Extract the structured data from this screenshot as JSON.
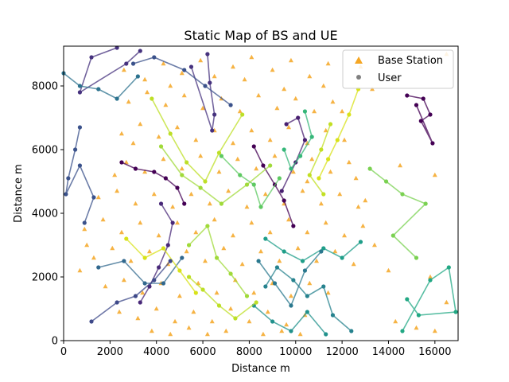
{
  "chart_data": {
    "type": "scatter",
    "title": "Static Map of BS and UE",
    "xlabel": "Distance m",
    "ylabel": "Distance m",
    "xlim": [
      0,
      17000
    ],
    "ylim": [
      0,
      9250
    ],
    "xticks": [
      0,
      2000,
      4000,
      6000,
      8000,
      10000,
      12000,
      14000,
      16000
    ],
    "yticks": [
      0,
      2000,
      4000,
      6000,
      8000
    ],
    "grid": false,
    "legend_position": "top-right",
    "legend": [
      {
        "label": "Base Station",
        "marker": "triangle",
        "color": "#f5a623"
      },
      {
        "label": "User",
        "marker": "circle",
        "color": "#808080"
      }
    ],
    "base_station_color": "#f5a623",
    "colormap": "viridis",
    "base_stations": [
      [
        2600,
        8500
      ],
      [
        3500,
        8200
      ],
      [
        4300,
        8700
      ],
      [
        5100,
        8400
      ],
      [
        5900,
        8800
      ],
      [
        6500,
        8300
      ],
      [
        7300,
        8600
      ],
      [
        8100,
        8900
      ],
      [
        9000,
        8500
      ],
      [
        9800,
        8800
      ],
      [
        10600,
        8300
      ],
      [
        11400,
        8700
      ],
      [
        2800,
        7500
      ],
      [
        3600,
        7800
      ],
      [
        4400,
        7400
      ],
      [
        5200,
        7700
      ],
      [
        6000,
        7300
      ],
      [
        6800,
        7600
      ],
      [
        7600,
        7200
      ],
      [
        8400,
        7700
      ],
      [
        9200,
        7300
      ],
      [
        10000,
        7600
      ],
      [
        10800,
        7200
      ],
      [
        11600,
        7500
      ],
      [
        2500,
        6500
      ],
      [
        3300,
        6800
      ],
      [
        4100,
        6400
      ],
      [
        4900,
        6700
      ],
      [
        5700,
        6300
      ],
      [
        6500,
        6600
      ],
      [
        7300,
        6200
      ],
      [
        8100,
        6600
      ],
      [
        8900,
        6300
      ],
      [
        9700,
        6700
      ],
      [
        10500,
        6200
      ],
      [
        11300,
        6600
      ],
      [
        12100,
        6300
      ],
      [
        2700,
        5600
      ],
      [
        3500,
        5300
      ],
      [
        4300,
        5700
      ],
      [
        5100,
        5400
      ],
      [
        5900,
        5800
      ],
      [
        6700,
        5300
      ],
      [
        7500,
        5700
      ],
      [
        8300,
        5400
      ],
      [
        9100,
        5800
      ],
      [
        9900,
        5300
      ],
      [
        10700,
        5700
      ],
      [
        11500,
        5300
      ],
      [
        12300,
        5600
      ],
      [
        1500,
        4500
      ],
      [
        2300,
        4700
      ],
      [
        3100,
        4300
      ],
      [
        3900,
        4600
      ],
      [
        4700,
        4200
      ],
      [
        5500,
        4600
      ],
      [
        6300,
        4300
      ],
      [
        7100,
        4700
      ],
      [
        7900,
        4200
      ],
      [
        8700,
        4600
      ],
      [
        9500,
        4300
      ],
      [
        10300,
        4700
      ],
      [
        11100,
        4300
      ],
      [
        11900,
        4600
      ],
      [
        12700,
        4200
      ],
      [
        900,
        3500
      ],
      [
        1700,
        3800
      ],
      [
        2500,
        3400
      ],
      [
        3300,
        3700
      ],
      [
        4100,
        3300
      ],
      [
        4900,
        3700
      ],
      [
        5700,
        3400
      ],
      [
        6500,
        3800
      ],
      [
        7300,
        3300
      ],
      [
        8100,
        3700
      ],
      [
        8900,
        3400
      ],
      [
        9700,
        3800
      ],
      [
        10500,
        3400
      ],
      [
        11300,
        3700
      ],
      [
        12100,
        3300
      ],
      [
        12900,
        3600
      ],
      [
        1300,
        2600
      ],
      [
        2100,
        2900
      ],
      [
        2900,
        2500
      ],
      [
        3700,
        2800
      ],
      [
        4500,
        2400
      ],
      [
        5300,
        2800
      ],
      [
        6100,
        2500
      ],
      [
        6900,
        2900
      ],
      [
        7700,
        2400
      ],
      [
        8500,
        2800
      ],
      [
        9300,
        2500
      ],
      [
        10100,
        2900
      ],
      [
        10900,
        2500
      ],
      [
        11700,
        2800
      ],
      [
        12500,
        2400
      ],
      [
        1800,
        1700
      ],
      [
        2600,
        1900
      ],
      [
        3400,
        1500
      ],
      [
        4200,
        1800
      ],
      [
        5000,
        1400
      ],
      [
        5800,
        1800
      ],
      [
        6600,
        1500
      ],
      [
        7400,
        1900
      ],
      [
        8200,
        1500
      ],
      [
        9000,
        1800
      ],
      [
        9800,
        1400
      ],
      [
        10600,
        1800
      ],
      [
        11400,
        1500
      ],
      [
        2400,
        900
      ],
      [
        3200,
        700
      ],
      [
        4000,
        1000
      ],
      [
        4800,
        600
      ],
      [
        5600,
        900
      ],
      [
        6400,
        600
      ],
      [
        7200,
        1000
      ],
      [
        8000,
        600
      ],
      [
        8800,
        900
      ],
      [
        9600,
        500
      ],
      [
        10400,
        800
      ],
      [
        3800,
        300
      ],
      [
        4600,
        200
      ],
      [
        5400,
        400
      ],
      [
        6200,
        200
      ],
      [
        7000,
        300
      ],
      [
        8600,
        200
      ],
      [
        9400,
        300
      ],
      [
        10200,
        200
      ],
      [
        14300,
        600
      ],
      [
        15200,
        400
      ],
      [
        16000,
        300
      ],
      [
        16500,
        1200
      ],
      [
        15800,
        2000
      ],
      [
        14000,
        2200
      ],
      [
        13400,
        3000
      ],
      [
        14500,
        5500
      ],
      [
        13300,
        7900
      ],
      [
        12800,
        8600
      ],
      [
        16500,
        9000
      ],
      [
        16000,
        5200
      ],
      [
        1000,
        3000
      ],
      [
        700,
        2200
      ],
      [
        2200,
        5200
      ],
      [
        3000,
        6200
      ],
      [
        4600,
        8000
      ],
      [
        7800,
        8200
      ],
      [
        9500,
        7900
      ],
      [
        11200,
        8000
      ],
      [
        12000,
        7200
      ],
      [
        12600,
        5100
      ],
      [
        13000,
        4400
      ],
      [
        10500,
        5000
      ]
    ],
    "users": [
      {
        "color": "#46327e",
        "points": [
          [
            2300,
            9200
          ],
          [
            1200,
            8900
          ],
          [
            700,
            7800
          ],
          [
            2700,
            8700
          ],
          [
            3300,
            9100
          ]
        ]
      },
      {
        "color": "#46327e",
        "points": [
          [
            6200,
            9000
          ],
          [
            6300,
            8100
          ],
          [
            6500,
            7100
          ],
          [
            6400,
            6600
          ],
          [
            5500,
            8600
          ]
        ]
      },
      {
        "color": "#3b528b",
        "points": [
          [
            700,
            6700
          ],
          [
            500,
            6000
          ],
          [
            200,
            5100
          ],
          [
            100,
            4600
          ],
          [
            700,
            5500
          ],
          [
            1300,
            4500
          ],
          [
            900,
            3700
          ]
        ]
      },
      {
        "color": "#3b528b",
        "points": [
          [
            3000,
            8700
          ],
          [
            3900,
            8900
          ],
          [
            5200,
            8500
          ],
          [
            6100,
            8000
          ],
          [
            7200,
            7400
          ]
        ]
      },
      {
        "color": "#440154",
        "points": [
          [
            2500,
            5600
          ],
          [
            3100,
            5400
          ],
          [
            3900,
            5300
          ],
          [
            4400,
            5100
          ],
          [
            4900,
            4800
          ],
          [
            5200,
            4300
          ]
        ]
      },
      {
        "color": "#440154",
        "points": [
          [
            8200,
            6100
          ],
          [
            8600,
            5500
          ],
          [
            9100,
            4900
          ],
          [
            9500,
            4400
          ],
          [
            9900,
            3600
          ]
        ]
      },
      {
        "color": "#482878",
        "points": [
          [
            4200,
            4300
          ],
          [
            4700,
            3700
          ],
          [
            4500,
            3000
          ],
          [
            4100,
            2300
          ],
          [
            3700,
            1700
          ],
          [
            3300,
            1200
          ]
        ]
      },
      {
        "color": "#31688e",
        "points": [
          [
            1500,
            2300
          ],
          [
            2600,
            2500
          ],
          [
            3500,
            1800
          ],
          [
            4300,
            1800
          ],
          [
            5100,
            2600
          ]
        ]
      },
      {
        "color": "#440154",
        "points": [
          [
            14800,
            7700
          ],
          [
            15500,
            7600
          ],
          [
            15800,
            7100
          ],
          [
            15400,
            6900
          ],
          [
            15900,
            6200
          ],
          [
            15200,
            7400
          ]
        ]
      },
      {
        "color": "#481f70",
        "points": [
          [
            9600,
            6800
          ],
          [
            10100,
            7000
          ],
          [
            10400,
            6300
          ],
          [
            10000,
            5600
          ],
          [
            9400,
            4700
          ]
        ]
      },
      {
        "color": "#35b779",
        "points": [
          [
            9500,
            6000
          ],
          [
            9800,
            5400
          ],
          [
            10200,
            5800
          ],
          [
            10700,
            6400
          ],
          [
            10400,
            7200
          ]
        ]
      },
      {
        "color": "#1f9e89",
        "points": [
          [
            8700,
            3200
          ],
          [
            9500,
            2800
          ],
          [
            10300,
            2500
          ],
          [
            11200,
            2900
          ],
          [
            12000,
            2600
          ],
          [
            12800,
            3100
          ]
        ]
      },
      {
        "color": "#26828e",
        "points": [
          [
            8700,
            1700
          ],
          [
            9200,
            2300
          ],
          [
            9900,
            1900
          ],
          [
            10500,
            1400
          ],
          [
            11200,
            1700
          ],
          [
            11600,
            800
          ],
          [
            12400,
            300
          ]
        ]
      },
      {
        "color": "#21918c",
        "points": [
          [
            8200,
            1100
          ],
          [
            9000,
            600
          ],
          [
            9800,
            300
          ],
          [
            10500,
            900
          ],
          [
            11300,
            200
          ]
        ]
      },
      {
        "color": "#5ec962",
        "points": [
          [
            6800,
            5800
          ],
          [
            7600,
            5200
          ],
          [
            8200,
            4900
          ],
          [
            8500,
            4200
          ],
          [
            9300,
            5100
          ]
        ]
      },
      {
        "color": "#7ad151",
        "points": [
          [
            13200,
            5400
          ],
          [
            13900,
            5000
          ],
          [
            14600,
            4600
          ],
          [
            15600,
            4300
          ],
          [
            14200,
            3300
          ],
          [
            15200,
            2600
          ]
        ]
      },
      {
        "color": "#22a884",
        "points": [
          [
            14800,
            1300
          ],
          [
            15300,
            800
          ],
          [
            16900,
            900
          ],
          [
            16600,
            2300
          ],
          [
            15800,
            1900
          ],
          [
            14600,
            300
          ]
        ]
      },
      {
        "color": "#a0da39",
        "points": [
          [
            4200,
            6100
          ],
          [
            5100,
            5200
          ],
          [
            5900,
            4800
          ],
          [
            6800,
            4300
          ],
          [
            7900,
            4900
          ],
          [
            8900,
            5500
          ]
        ]
      },
      {
        "color": "#bddf26",
        "points": [
          [
            3800,
            7600
          ],
          [
            4600,
            6500
          ],
          [
            5300,
            5600
          ],
          [
            6100,
            5000
          ],
          [
            6700,
            5900
          ],
          [
            7700,
            7100
          ]
        ]
      },
      {
        "color": "#a0da39",
        "points": [
          [
            5400,
            3000
          ],
          [
            6200,
            3600
          ],
          [
            6600,
            2600
          ],
          [
            7200,
            2100
          ],
          [
            7900,
            1400
          ]
        ]
      },
      {
        "color": "#bddf26",
        "points": [
          [
            5400,
            2000
          ],
          [
            6000,
            1600
          ],
          [
            6700,
            1100
          ],
          [
            7400,
            700
          ],
          [
            8300,
            1200
          ]
        ]
      },
      {
        "color": "#d8e219",
        "points": [
          [
            2700,
            3200
          ],
          [
            3500,
            2600
          ],
          [
            4300,
            2900
          ],
          [
            5000,
            2200
          ],
          [
            5700,
            1500
          ]
        ]
      },
      {
        "color": "#d8e219",
        "points": [
          [
            11000,
            5100
          ],
          [
            11400,
            5700
          ],
          [
            11800,
            6300
          ],
          [
            12300,
            7100
          ],
          [
            12700,
            7900
          ]
        ]
      },
      {
        "color": "#c2df23",
        "points": [
          [
            11200,
            4600
          ],
          [
            10600,
            5200
          ],
          [
            11100,
            6000
          ],
          [
            11500,
            6800
          ]
        ]
      },
      {
        "color": "#2a788e",
        "points": [
          [
            8400,
            2500
          ],
          [
            9100,
            1800
          ],
          [
            9800,
            1100
          ],
          [
            10400,
            2200
          ],
          [
            11100,
            2800
          ]
        ]
      },
      {
        "color": "#3e4989",
        "points": [
          [
            1200,
            600
          ],
          [
            2300,
            1200
          ],
          [
            3100,
            1400
          ],
          [
            3900,
            1900
          ],
          [
            4600,
            2500
          ]
        ]
      },
      {
        "color": "#2c728e",
        "points": [
          [
            0,
            8400
          ],
          [
            700,
            8000
          ],
          [
            1500,
            7900
          ],
          [
            2300,
            7600
          ],
          [
            3200,
            8300
          ]
        ]
      }
    ]
  }
}
